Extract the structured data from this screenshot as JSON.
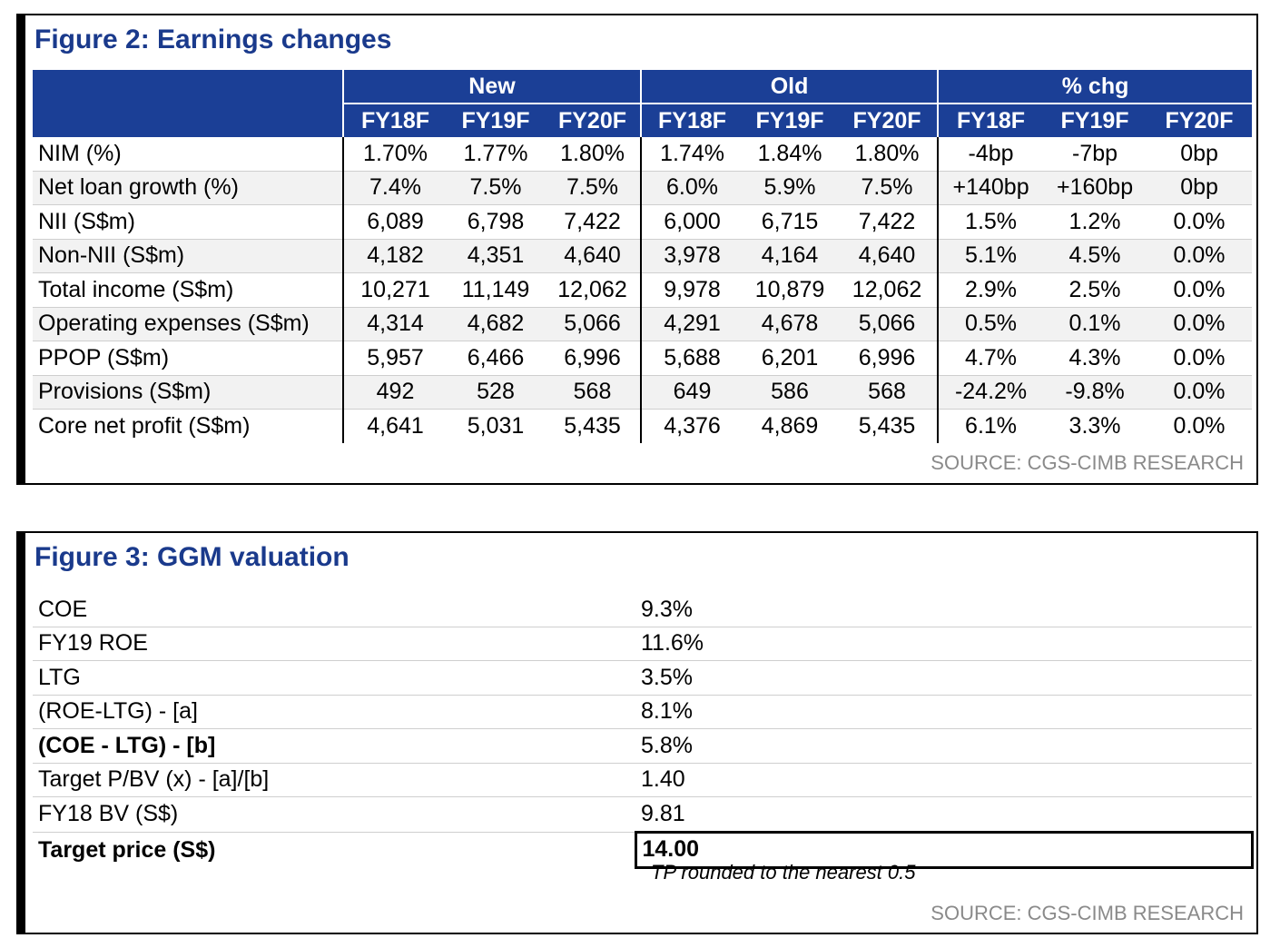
{
  "figure2": {
    "title": "Figure 2: Earnings changes",
    "groups": [
      "New",
      "Old",
      "% chg"
    ],
    "years": [
      "FY18F",
      "FY19F",
      "FY20F",
      "FY18F",
      "FY19F",
      "FY20F",
      "FY18F",
      "FY19F",
      "FY20F"
    ],
    "rows": [
      {
        "label": "NIM (%)",
        "values": [
          "1.70%",
          "1.77%",
          "1.80%",
          "1.74%",
          "1.84%",
          "1.80%",
          "-4bp",
          "-7bp",
          "0bp"
        ]
      },
      {
        "label": "Net loan growth (%)",
        "values": [
          "7.4%",
          "7.5%",
          "7.5%",
          "6.0%",
          "5.9%",
          "7.5%",
          "+140bp",
          "+160bp",
          "0bp"
        ]
      },
      {
        "label": "NII  (S$m)",
        "values": [
          "6,089",
          "6,798",
          "7,422",
          "6,000",
          "6,715",
          "7,422",
          "1.5%",
          "1.2%",
          "0.0%"
        ]
      },
      {
        "label": "Non-NII (S$m)",
        "values": [
          "4,182",
          "4,351",
          "4,640",
          "3,978",
          "4,164",
          "4,640",
          "5.1%",
          "4.5%",
          "0.0%"
        ]
      },
      {
        "label": "Total income (S$m)",
        "values": [
          "10,271",
          "11,149",
          "12,062",
          "9,978",
          "10,879",
          "12,062",
          "2.9%",
          "2.5%",
          "0.0%"
        ]
      },
      {
        "label": "Operating expenses (S$m)",
        "values": [
          "4,314",
          "4,682",
          "5,066",
          "4,291",
          "4,678",
          "5,066",
          "0.5%",
          "0.1%",
          "0.0%"
        ]
      },
      {
        "label": "PPOP (S$m)",
        "values": [
          "5,957",
          "6,466",
          "6,996",
          "5,688",
          "6,201",
          "6,996",
          "4.7%",
          "4.3%",
          "0.0%"
        ]
      },
      {
        "label": "Provisions (S$m)",
        "values": [
          "492",
          "528",
          "568",
          "649",
          "586",
          "568",
          "-24.2%",
          "-9.8%",
          "0.0%"
        ]
      },
      {
        "label": "Core net profit (S$m)",
        "values": [
          "4,641",
          "5,031",
          "5,435",
          "4,376",
          "4,869",
          "5,435",
          "6.1%",
          "3.3%",
          "0.0%"
        ]
      }
    ],
    "source": "SOURCE: CGS-CIMB RESEARCH"
  },
  "figure3": {
    "title": "Figure 3: GGM valuation",
    "rows": [
      {
        "label": "COE",
        "value": "9.3%"
      },
      {
        "label": "FY19 ROE",
        "value": "11.6%"
      },
      {
        "label": "LTG",
        "value": "3.5%"
      },
      {
        "label": "(ROE-LTG) - [a]",
        "value": "8.1%"
      },
      {
        "label": "(COE - LTG) - [b]",
        "value": "5.8%"
      },
      {
        "label": "Target P/BV (x) - [a]/[b]",
        "value": "1.40"
      },
      {
        "label": "FY18 BV (S$)",
        "value": "9.81"
      },
      {
        "label": "Target price (S$)",
        "value": "14.00"
      }
    ],
    "note": "TP rounded to the nearest 0.5",
    "source": "SOURCE: CGS-CIMB RESEARCH"
  },
  "colors": {
    "title": "#1a3a8c",
    "header_bg": "#1b3f96",
    "source_text": "#8a8a8a"
  }
}
